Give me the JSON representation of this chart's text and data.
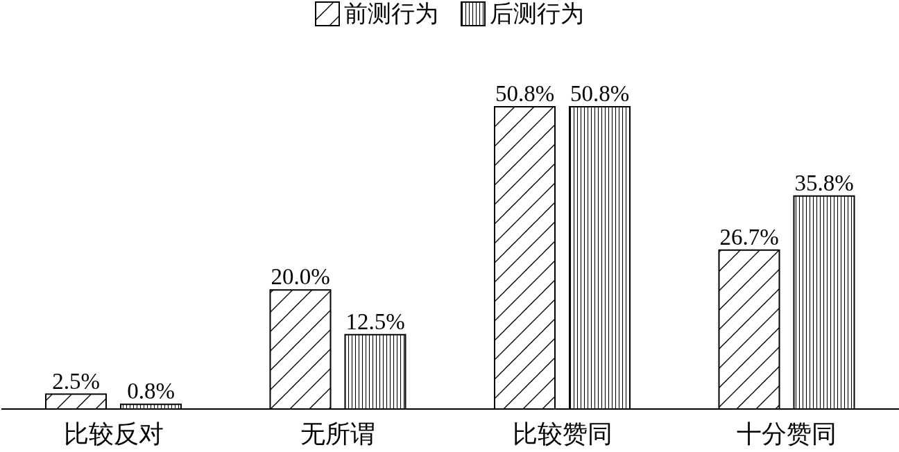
{
  "chart_data": {
    "type": "bar",
    "categories": [
      "比较反对",
      "无所谓",
      "比较赞同",
      "十分赞同"
    ],
    "series": [
      {
        "name": "前测行为",
        "color": "#000000",
        "values": [
          2.5,
          20.0,
          50.8,
          26.7
        ],
        "value_labels": [
          "2.5%",
          "20.0%",
          "50.8%",
          "26.7%"
        ]
      },
      {
        "name": "后测行为",
        "color": "#000000",
        "values": [
          0.8,
          12.5,
          50.8,
          35.8
        ],
        "value_labels": [
          "0.8%",
          "12.5%",
          "50.8%",
          "35.8%"
        ]
      }
    ],
    "legend": "top"
  }
}
